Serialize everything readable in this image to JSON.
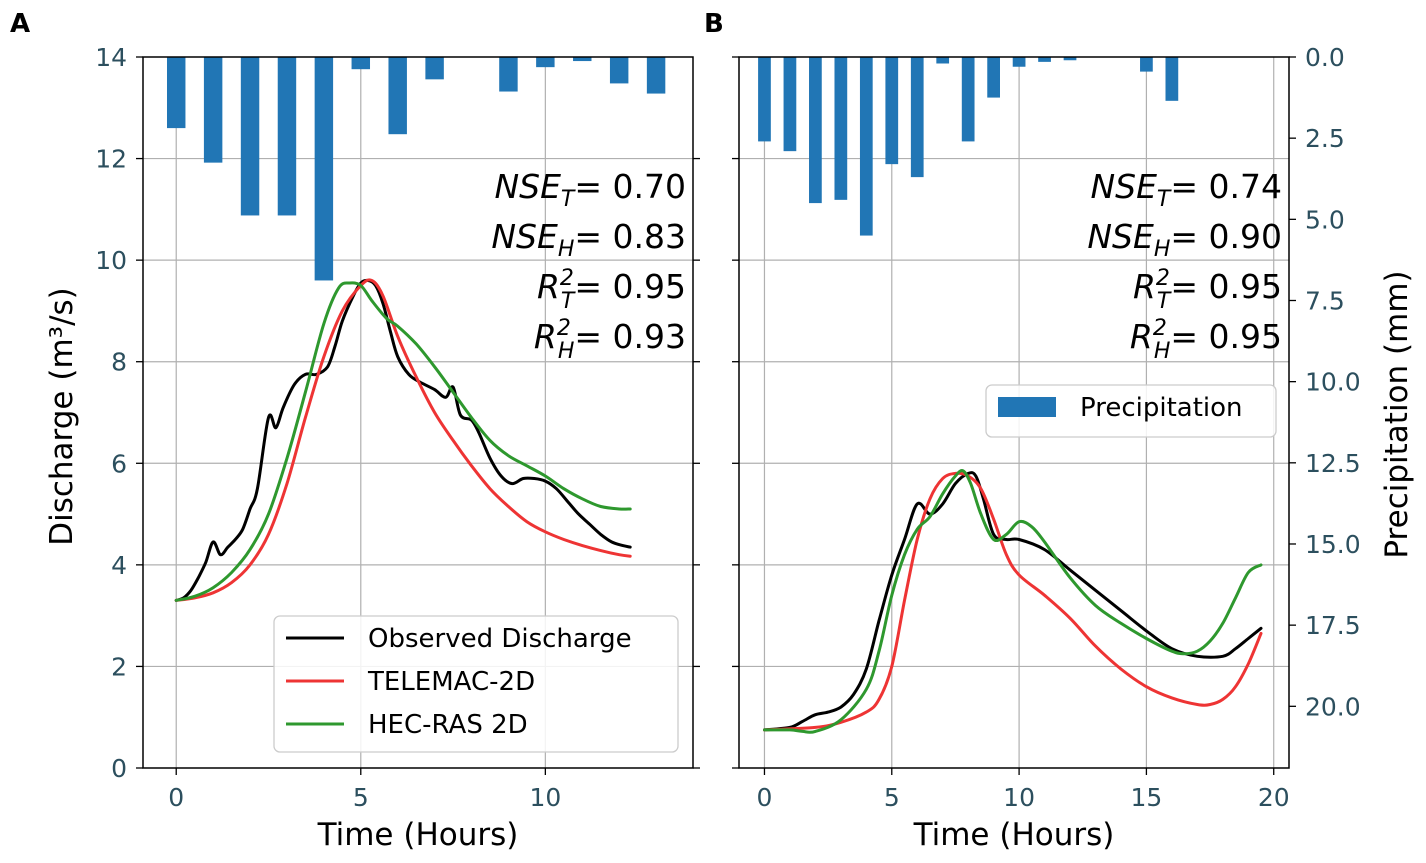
{
  "chart_data": [
    {
      "panel": "A",
      "type": "line",
      "xlabel": "Time (Hours)",
      "ylabel": "Discharge (m³/s)",
      "xlim": [
        -0.9,
        14.0
      ],
      "ylim": [
        0,
        14
      ],
      "xticks": [
        0,
        5,
        10
      ],
      "yticks": [
        0,
        2,
        4,
        6,
        8,
        10,
        12,
        14
      ],
      "y2lim": [
        0,
        17.5
      ],
      "y2ticks": [],
      "grid": true,
      "series": [
        {
          "name": "Observed Discharge",
          "color": "#000000",
          "x": [
            0,
            0.2,
            0.4,
            0.6,
            0.8,
            1.0,
            1.2,
            1.4,
            1.6,
            1.8,
            2.0,
            2.2,
            2.5,
            2.7,
            2.9,
            3.2,
            3.5,
            3.8,
            4.1,
            4.3,
            4.5,
            4.8,
            5.0,
            5.2,
            5.4,
            5.6,
            5.8,
            6.0,
            6.3,
            6.6,
            7.0,
            7.3,
            7.5,
            7.7,
            8.0,
            8.2,
            8.5,
            8.8,
            9.1,
            9.4,
            9.7,
            10.0,
            10.3,
            10.6,
            10.9,
            11.2,
            11.5,
            11.8,
            12.1,
            12.3
          ],
          "y": [
            3.3,
            3.35,
            3.5,
            3.75,
            4.05,
            4.45,
            4.2,
            4.35,
            4.5,
            4.7,
            5.1,
            5.5,
            6.9,
            6.7,
            7.1,
            7.55,
            7.75,
            7.75,
            7.9,
            8.3,
            8.8,
            9.3,
            9.55,
            9.6,
            9.5,
            9.15,
            8.6,
            8.1,
            7.75,
            7.6,
            7.45,
            7.3,
            7.5,
            6.95,
            6.85,
            6.6,
            6.1,
            5.75,
            5.6,
            5.7,
            5.7,
            5.65,
            5.5,
            5.25,
            5.0,
            4.8,
            4.6,
            4.45,
            4.38,
            4.35
          ]
        },
        {
          "name": "TELEMAC-2D",
          "color": "#ee3434",
          "x": [
            0,
            0.5,
            1.0,
            1.5,
            2.0,
            2.5,
            3.0,
            3.5,
            4.0,
            4.5,
            5.0,
            5.3,
            5.6,
            6.0,
            6.5,
            7.0,
            7.5,
            8.0,
            8.5,
            9.0,
            9.5,
            10.0,
            10.5,
            11.0,
            11.5,
            12.0,
            12.3
          ],
          "y": [
            3.3,
            3.35,
            3.45,
            3.65,
            4.0,
            4.6,
            5.6,
            6.9,
            8.1,
            9.0,
            9.5,
            9.6,
            9.3,
            8.5,
            7.7,
            7.0,
            6.45,
            5.95,
            5.5,
            5.15,
            4.85,
            4.65,
            4.5,
            4.38,
            4.28,
            4.2,
            4.17
          ]
        },
        {
          "name": "HEC-RAS 2D",
          "color": "#2e982e",
          "x": [
            0,
            0.5,
            1.0,
            1.5,
            2.0,
            2.5,
            3.0,
            3.5,
            4.0,
            4.4,
            4.7,
            5.0,
            5.3,
            5.7,
            6.0,
            6.5,
            7.0,
            7.5,
            8.0,
            8.5,
            9.0,
            9.5,
            10.0,
            10.5,
            11.0,
            11.5,
            12.0,
            12.3
          ],
          "y": [
            3.3,
            3.38,
            3.55,
            3.85,
            4.3,
            5.0,
            6.1,
            7.4,
            8.75,
            9.45,
            9.55,
            9.5,
            9.2,
            8.85,
            8.7,
            8.35,
            7.9,
            7.4,
            6.9,
            6.45,
            6.15,
            5.95,
            5.75,
            5.5,
            5.3,
            5.15,
            5.1,
            5.1
          ]
        },
        {
          "name": "Precipitation",
          "type": "bar",
          "axis": "right",
          "color": "#2176b5",
          "x": [
            0,
            1,
            2,
            3,
            4,
            5,
            6,
            7,
            9,
            10,
            11,
            12,
            13
          ],
          "values": [
            1.75,
            2.6,
            3.9,
            3.9,
            5.5,
            0.3,
            1.9,
            0.55,
            0.85,
            0.25,
            0.1,
            0.65,
            0.9
          ]
        }
      ],
      "legend": {
        "location": "lower right",
        "entries": [
          "Observed Discharge",
          "TELEMAC-2D",
          "HEC-RAS 2D"
        ]
      },
      "annotations": [
        {
          "main": "NSE",
          "sub": "T",
          "sup": "",
          "value": "= 0.70"
        },
        {
          "main": "NSE",
          "sub": "H",
          "sup": "",
          "value": "= 0.83"
        },
        {
          "main": "R",
          "sub": "T",
          "sup": "2",
          "value": "= 0.95"
        },
        {
          "main": "R",
          "sub": "H",
          "sup": "2",
          "value": "= 0.93"
        }
      ]
    },
    {
      "panel": "B",
      "type": "line",
      "xlabel": "Time (Hours)",
      "ylabel": "",
      "y2label": "Precipitation (mm)",
      "xlim": [
        -1.0,
        20.6
      ],
      "ylim": [
        0,
        14
      ],
      "xticks": [
        0,
        5,
        10,
        15,
        20
      ],
      "yticks": [],
      "y2lim": [
        0,
        21.9
      ],
      "y2ticks": [
        "0.0",
        "2.5",
        "5.0",
        "7.5",
        "10.0",
        "12.5",
        "15.0",
        "17.5",
        "20.0"
      ],
      "grid": true,
      "series": [
        {
          "name": "Observed Discharge",
          "color": "#000000",
          "x": [
            0,
            1.0,
            1.5,
            2.0,
            2.5,
            3.0,
            3.5,
            4.0,
            4.5,
            5.0,
            5.5,
            6.0,
            6.5,
            7.0,
            7.5,
            8.0,
            8.3,
            8.6,
            9.0,
            9.5,
            10.0,
            11.0,
            12.0,
            13.0,
            14.0,
            15.0,
            16.0,
            17.0,
            18.0,
            18.5,
            19.0,
            19.5
          ],
          "y": [
            0.75,
            0.8,
            0.92,
            1.05,
            1.1,
            1.2,
            1.45,
            1.95,
            2.9,
            3.8,
            4.5,
            5.2,
            5.0,
            5.2,
            5.6,
            5.8,
            5.75,
            5.3,
            4.6,
            4.5,
            4.5,
            4.3,
            3.9,
            3.5,
            3.1,
            2.7,
            2.35,
            2.2,
            2.2,
            2.35,
            2.55,
            2.75
          ]
        },
        {
          "name": "TELEMAC-2D",
          "color": "#ee3434",
          "x": [
            0,
            2,
            3,
            4,
            4.5,
            5.0,
            5.5,
            6.0,
            6.5,
            7.0,
            7.5,
            8.0,
            8.5,
            9.0,
            9.5,
            10.0,
            11.0,
            12.0,
            13.0,
            14.0,
            15.0,
            16.0,
            17.0,
            17.5,
            18.0,
            18.5,
            19.0,
            19.5
          ],
          "y": [
            0.75,
            0.8,
            0.9,
            1.1,
            1.35,
            2.0,
            3.3,
            4.5,
            5.3,
            5.7,
            5.8,
            5.75,
            5.5,
            4.9,
            4.2,
            3.8,
            3.4,
            2.95,
            2.4,
            1.95,
            1.6,
            1.38,
            1.25,
            1.25,
            1.35,
            1.6,
            2.05,
            2.65
          ]
        },
        {
          "name": "HEC-RAS 2D",
          "color": "#2e982e",
          "x": [
            0,
            1.0,
            1.5,
            2.0,
            3.0,
            4.0,
            4.5,
            5.0,
            5.5,
            6.0,
            6.5,
            7.0,
            7.5,
            7.8,
            8.1,
            8.5,
            9.0,
            9.5,
            10.0,
            10.5,
            11.0,
            12.0,
            13.0,
            14.0,
            15.0,
            16.0,
            16.5,
            17.0,
            17.5,
            18.0,
            18.5,
            19.0,
            19.5
          ],
          "y": [
            0.75,
            0.75,
            0.72,
            0.72,
            0.95,
            1.55,
            2.3,
            3.4,
            4.2,
            4.7,
            4.95,
            5.4,
            5.75,
            5.85,
            5.6,
            5.0,
            4.5,
            4.6,
            4.85,
            4.75,
            4.45,
            3.75,
            3.2,
            2.85,
            2.55,
            2.3,
            2.25,
            2.3,
            2.5,
            2.85,
            3.35,
            3.85,
            4.0
          ]
        },
        {
          "name": "Precipitation",
          "type": "bar",
          "axis": "right",
          "color": "#2176b5",
          "x": [
            0,
            1,
            2,
            3,
            4,
            5,
            6,
            7,
            8,
            9,
            10,
            11,
            12,
            15,
            16
          ],
          "values": [
            2.6,
            2.9,
            4.5,
            4.4,
            5.5,
            3.3,
            3.7,
            0.2,
            2.6,
            1.25,
            0.3,
            0.15,
            0.1,
            0.45,
            1.35
          ]
        }
      ],
      "legend": {
        "location": "center right",
        "entries": [
          "Precipitation"
        ]
      },
      "annotations": [
        {
          "main": "NSE",
          "sub": "T",
          "sup": "",
          "value": "= 0.74"
        },
        {
          "main": "NSE",
          "sub": "H",
          "sup": "",
          "value": "= 0.90"
        },
        {
          "main": "R",
          "sub": "T",
          "sup": "2",
          "value": "= 0.95"
        },
        {
          "main": "R",
          "sub": "H",
          "sup": "2",
          "value": "= 0.95"
        }
      ]
    }
  ]
}
